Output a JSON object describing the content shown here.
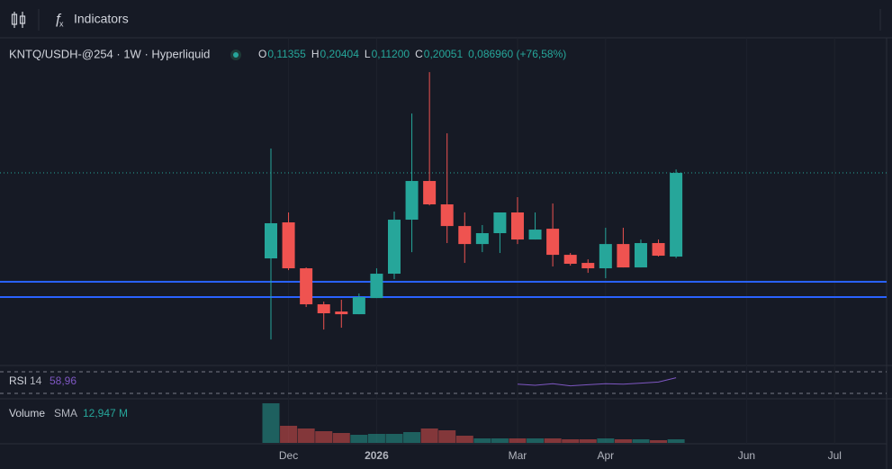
{
  "toolbar": {
    "indicators": "Indicators"
  },
  "chart_data": {
    "type": "candlestick",
    "symbol": "KNTQ/USDH-@254 · 1W · Hyperliquid",
    "ohlc_legend": [
      {
        "key": "O",
        "label": "0,11355"
      },
      {
        "key": "H",
        "label": "0,20404"
      },
      {
        "key": "L",
        "label": "0,11200"
      },
      {
        "key": "C",
        "label": "0,20051"
      }
    ],
    "change_label": "0,086960 (+76,58%)",
    "up_color": "#26a69a",
    "down_color": "#ef5350",
    "categories": [
      null,
      "Dec",
      null,
      null,
      null,
      null,
      "2026",
      null,
      null,
      null,
      null,
      null,
      null,
      null,
      "Mar",
      null,
      null,
      null,
      null,
      "Apr",
      null,
      null,
      null,
      null,
      null,
      null,
      null,
      "Jun",
      null,
      null,
      null,
      null,
      "Jul",
      null,
      null,
      null
    ],
    "open": [
      0.1117,
      0.1491,
      0.1014,
      0.064,
      0.0565,
      0.0537,
      0.0705,
      0.0958,
      0.1519,
      0.1921,
      0.1678,
      0.1453,
      0.1266,
      0.1379,
      0.1594,
      0.1313,
      0.1425,
      0.1154,
      0.107,
      0.1014,
      0.1266,
      0.1023,
      0.1276,
      0.11355,
      null,
      null,
      null,
      null,
      null,
      null,
      null,
      null,
      null,
      null,
      null,
      null
    ],
    "high": [
      0.2258,
      0.1594,
      0.1023,
      0.0668,
      0.0687,
      0.0752,
      0.1014,
      0.1603,
      0.2622,
      0.3052,
      0.2416,
      0.1594,
      0.1463,
      0.1594,
      0.1753,
      0.1594,
      0.1687,
      0.1173,
      0.1107,
      0.1435,
      0.1435,
      0.1313,
      0.1313,
      0.20404,
      null,
      null,
      null,
      null,
      null,
      null,
      null,
      null,
      null,
      null,
      null,
      null
    ],
    "low": [
      0.0275,
      0.0995,
      0.0612,
      0.0378,
      0.0397,
      0.0537,
      0.0705,
      0.0902,
      0.1182,
      0.1668,
      0.1276,
      0.107,
      0.1182,
      0.1173,
      0.1266,
      0.1313,
      0.1033,
      0.1042,
      0.0967,
      0.0911,
      0.1023,
      0.1023,
      0.1136,
      0.112,
      null,
      null,
      null,
      null,
      null,
      null,
      null,
      null,
      null,
      null,
      null,
      null
    ],
    "close": [
      0.1482,
      0.1014,
      0.064,
      0.0547,
      0.0537,
      0.0715,
      0.0958,
      0.1519,
      0.1921,
      0.1678,
      0.1453,
      0.1266,
      0.1379,
      0.1594,
      0.1313,
      0.1416,
      0.1154,
      0.1061,
      0.1014,
      0.1266,
      0.1023,
      0.1276,
      0.1145,
      0.20051,
      null,
      null,
      null,
      null,
      null,
      null,
      null,
      null,
      null,
      null,
      null,
      null
    ],
    "ylim": [
      0.0014,
      0.3408
    ],
    "hlines": [
      0.0874,
      0.0715
    ],
    "hline_color": "#2962ff",
    "rsi": {
      "name": "RSI",
      "length": "14",
      "value_label": "58,96",
      "color": "#7e57c2",
      "values": [
        null,
        null,
        null,
        null,
        null,
        null,
        null,
        null,
        null,
        null,
        null,
        null,
        null,
        null,
        47,
        45,
        48,
        44,
        46,
        48,
        47,
        49,
        51,
        58.96,
        null,
        null,
        null,
        null,
        null,
        null,
        null,
        null,
        null,
        null,
        null,
        null
      ],
      "ylim": [
        25,
        76.7
      ],
      "levels": [
        70,
        30
      ]
    },
    "volume": {
      "name": "Volume",
      "sma_name": "SMA",
      "sma_label": "12,947 M",
      "values": [
        57.2,
        24.7,
        20.8,
        16.9,
        14.3,
        11.7,
        13,
        13,
        15.6,
        20.8,
        18.2,
        10.4,
        6.5,
        6.5,
        6.5,
        6.5,
        6.5,
        5.2,
        5.2,
        6.5,
        5.2,
        5.2,
        3.9,
        5.2,
        null,
        null,
        null,
        null,
        null,
        null,
        null,
        null,
        null,
        null,
        null,
        null
      ],
      "ylim": [
        0,
        61.1
      ]
    }
  }
}
